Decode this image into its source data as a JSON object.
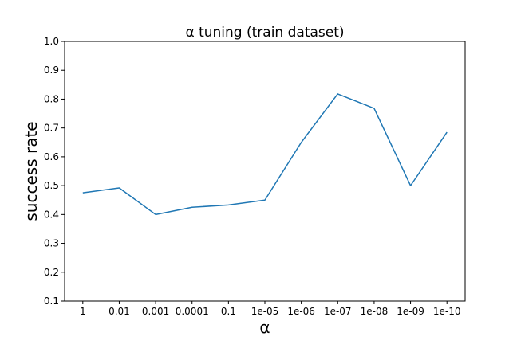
{
  "chart_data": {
    "type": "line",
    "title": "α tuning (train dataset)",
    "xlabel": "α",
    "ylabel": "success rate",
    "categories": [
      "1",
      "0.01",
      "0.001",
      "0.0001",
      "0.1",
      "1e-05",
      "1e-06",
      "1e-07",
      "1e-08",
      "1e-09",
      "1e-10"
    ],
    "series": [
      {
        "values": [
          0.475,
          0.492,
          0.4,
          0.425,
          0.433,
          0.45,
          0.65,
          0.818,
          0.768,
          0.5,
          0.685
        ],
        "color": "#1f77b4"
      }
    ],
    "ylim": [
      0.1,
      1.0
    ],
    "yticks": [
      "0.1",
      "0.2",
      "0.3",
      "0.4",
      "0.5",
      "0.6",
      "0.7",
      "0.8",
      "0.9",
      "1.0"
    ],
    "grid": false
  }
}
